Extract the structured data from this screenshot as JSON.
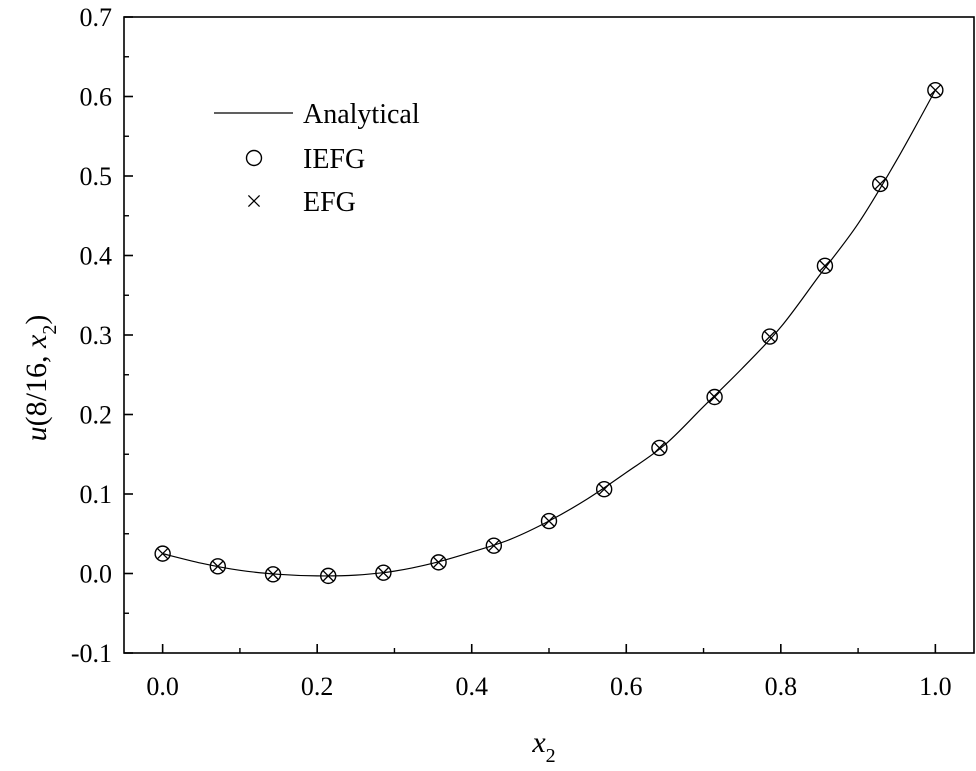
{
  "chart_data": {
    "type": "line",
    "xlabel": "x",
    "xlabel_sub": "2",
    "ylabel_prefix": "u",
    "ylabel_args": "(8/16, ",
    "ylabel_var": "x",
    "ylabel_sub": "2",
    "ylabel_suffix": ")",
    "xlim": [
      -0.05,
      1.05
    ],
    "ylim": [
      -0.1,
      0.7
    ],
    "x_ticks": [
      0.0,
      0.2,
      0.4,
      0.6,
      0.8,
      1.0
    ],
    "x_tick_labels": [
      "0.0",
      "0.2",
      "0.4",
      "0.6",
      "0.8",
      "1.0"
    ],
    "y_ticks": [
      -0.1,
      0.0,
      0.1,
      0.2,
      0.3,
      0.4,
      0.5,
      0.6,
      0.7
    ],
    "y_tick_labels": [
      "-0.1",
      "0.0",
      "0.1",
      "0.2",
      "0.3",
      "0.4",
      "0.5",
      "0.6",
      "0.7"
    ],
    "grid": false,
    "legend_position": "top-left",
    "series": [
      {
        "name": "Analytical",
        "style": "line",
        "x": [
          0.0,
          0.05,
          0.1,
          0.15,
          0.2,
          0.25,
          0.3,
          0.35,
          0.4,
          0.45,
          0.5,
          0.55,
          0.6,
          0.65,
          0.7,
          0.75,
          0.8,
          0.85,
          0.9,
          0.95,
          1.0
        ],
        "y": [
          0.025,
          0.013,
          0.004,
          -0.001,
          -0.003,
          -0.002,
          0.003,
          0.013,
          0.027,
          0.043,
          0.066,
          0.094,
          0.127,
          0.162,
          0.21,
          0.258,
          0.31,
          0.375,
          0.44,
          0.52,
          0.608
        ]
      },
      {
        "name": "IEFG",
        "style": "circle",
        "x": [
          0.0,
          0.0714,
          0.1429,
          0.2143,
          0.2857,
          0.3571,
          0.4286,
          0.5,
          0.5714,
          0.6429,
          0.7143,
          0.7857,
          0.8571,
          0.9286,
          1.0
        ],
        "y": [
          0.025,
          0.009,
          -0.001,
          -0.003,
          0.001,
          0.014,
          0.035,
          0.066,
          0.106,
          0.158,
          0.222,
          0.298,
          0.387,
          0.49,
          0.608
        ]
      },
      {
        "name": "EFG",
        "style": "cross",
        "x": [
          0.0,
          0.0714,
          0.1429,
          0.2143,
          0.2857,
          0.3571,
          0.4286,
          0.5,
          0.5714,
          0.6429,
          0.7143,
          0.7857,
          0.8571,
          0.9286,
          1.0
        ],
        "y": [
          0.025,
          0.009,
          -0.001,
          -0.003,
          0.001,
          0.014,
          0.035,
          0.066,
          0.106,
          0.158,
          0.222,
          0.298,
          0.387,
          0.49,
          0.608
        ]
      }
    ]
  }
}
